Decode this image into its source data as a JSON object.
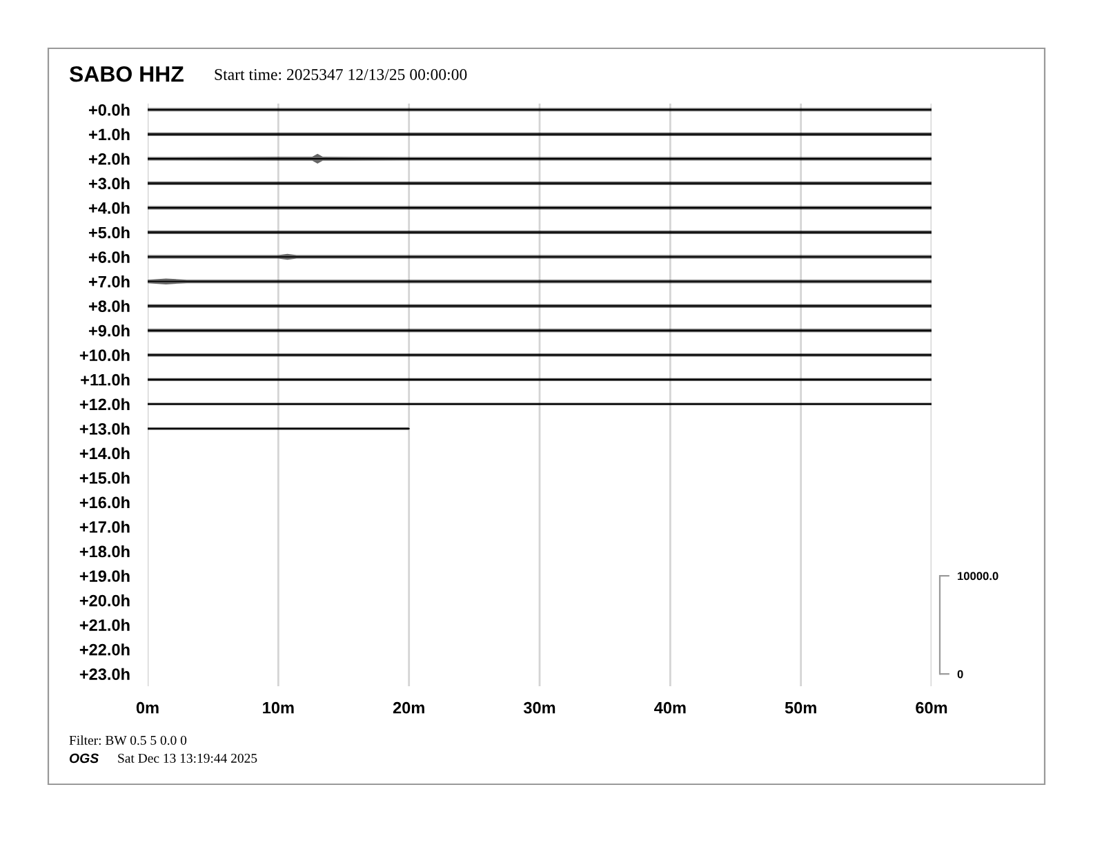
{
  "chart_data": {
    "type": "line",
    "title": "SABO HHZ",
    "subtitle": "Start time: 2025347 12/13/25 00:00:00",
    "annotations": [
      "Filter: BW 0.5 5 0.0 0",
      "OGS",
      "Sat Dec 13 13:19:44 2025"
    ],
    "xlim": [
      0,
      60
    ],
    "xticks": [
      {
        "value": 0,
        "label": "0m"
      },
      {
        "value": 10,
        "label": "10m"
      },
      {
        "value": 20,
        "label": "20m"
      },
      {
        "value": 30,
        "label": "30m"
      },
      {
        "value": 40,
        "label": "40m"
      },
      {
        "value": 50,
        "label": "50m"
      },
      {
        "value": 60,
        "label": "60m"
      }
    ],
    "ylim": [
      23.5,
      -0.25
    ],
    "yticks": [
      {
        "value": 0,
        "label": "+0.0h"
      },
      {
        "value": 1,
        "label": "+1.0h"
      },
      {
        "value": 2,
        "label": "+2.0h"
      },
      {
        "value": 3,
        "label": "+3.0h"
      },
      {
        "value": 4,
        "label": "+4.0h"
      },
      {
        "value": 5,
        "label": "+5.0h"
      },
      {
        "value": 6,
        "label": "+6.0h"
      },
      {
        "value": 7,
        "label": "+7.0h"
      },
      {
        "value": 8,
        "label": "+8.0h"
      },
      {
        "value": 9,
        "label": "+9.0h"
      },
      {
        "value": 10,
        "label": "+10.0h"
      },
      {
        "value": 11,
        "label": "+11.0h"
      },
      {
        "value": 12,
        "label": "+12.0h"
      },
      {
        "value": 13,
        "label": "+13.0h"
      },
      {
        "value": 14,
        "label": "+14.0h"
      },
      {
        "value": 15,
        "label": "+15.0h"
      },
      {
        "value": 16,
        "label": "+16.0h"
      },
      {
        "value": 17,
        "label": "+17.0h"
      },
      {
        "value": 18,
        "label": "+18.0h"
      },
      {
        "value": 19,
        "label": "+19.0h"
      },
      {
        "value": 20,
        "label": "+20.0h"
      },
      {
        "value": 21,
        "label": "+21.0h"
      },
      {
        "value": 22,
        "label": "+22.0h"
      },
      {
        "value": 23,
        "label": "+23.0h"
      }
    ],
    "y2lim": [
      -1250,
      58125
    ],
    "y2ticks": [
      {
        "value": 0,
        "label": "0"
      },
      {
        "value": 10000,
        "label": "10000.0"
      }
    ],
    "grid": "x",
    "series": [
      {
        "color": "#000000",
        "x": [
          0,
          10,
          20,
          30,
          40,
          50,
          60
        ],
        "values": [
          0,
          0,
          0,
          0,
          0,
          0,
          0
        ],
        "lower": [
          -0.07,
          -0.07,
          -0.07,
          -0.07,
          -0.07,
          -0.07,
          -0.07
        ],
        "upper": [
          0.07,
          0.07,
          0.07,
          0.07,
          0.07,
          0.07,
          0.07
        ]
      },
      {
        "color": "#000000",
        "x": [
          0,
          10,
          20,
          30,
          40,
          50,
          60
        ],
        "values": [
          1,
          1,
          1,
          1,
          1,
          1,
          1
        ],
        "lower": [
          0.93,
          0.93,
          0.93,
          0.93,
          0.93,
          0.93,
          0.93
        ],
        "upper": [
          1.07,
          1.07,
          1.07,
          1.07,
          1.07,
          1.07,
          1.07
        ]
      },
      {
        "color": "#000000",
        "x": [
          0,
          10,
          12.6,
          13,
          13.4,
          20,
          30,
          40,
          50,
          60
        ],
        "values": [
          2,
          2,
          2,
          2,
          2,
          2,
          2,
          2,
          2,
          2
        ],
        "lower": [
          1.93,
          1.92,
          1.92,
          1.8,
          1.92,
          1.93,
          1.93,
          1.93,
          1.93,
          1.93
        ],
        "upper": [
          2.07,
          2.08,
          2.08,
          2.2,
          2.08,
          2.07,
          2.07,
          2.07,
          2.07,
          2.07
        ]
      },
      {
        "color": "#000000",
        "x": [
          0,
          10,
          20,
          30,
          40,
          50,
          60
        ],
        "values": [
          3,
          3,
          3,
          3,
          3,
          3,
          3
        ],
        "lower": [
          2.93,
          2.93,
          2.93,
          2.93,
          2.93,
          2.93,
          2.93
        ],
        "upper": [
          3.07,
          3.07,
          3.07,
          3.07,
          3.07,
          3.07,
          3.07
        ]
      },
      {
        "color": "#000000",
        "x": [
          0,
          10,
          20,
          30,
          40,
          50,
          60
        ],
        "values": [
          4,
          4,
          4,
          4,
          4,
          4,
          4
        ],
        "lower": [
          3.93,
          3.93,
          3.93,
          3.93,
          3.93,
          3.93,
          3.93
        ],
        "upper": [
          4.07,
          4.07,
          4.07,
          4.07,
          4.07,
          4.07,
          4.07
        ]
      },
      {
        "color": "#000000",
        "x": [
          0,
          10,
          20,
          30,
          40,
          50,
          60
        ],
        "values": [
          5,
          5,
          5,
          5,
          5,
          5,
          5
        ],
        "lower": [
          4.93,
          4.93,
          4.93,
          4.93,
          4.93,
          4.93,
          4.93
        ],
        "upper": [
          5.07,
          5.07,
          5.07,
          5.07,
          5.07,
          5.07,
          5.07
        ]
      },
      {
        "color": "#000000",
        "x": [
          0,
          10,
          10.7,
          11.4,
          20,
          30,
          40,
          50,
          60
        ],
        "values": [
          6,
          6,
          6,
          6,
          6,
          6,
          6,
          6,
          6
        ],
        "lower": [
          5.93,
          5.93,
          5.88,
          5.93,
          5.93,
          5.93,
          5.93,
          5.93,
          5.93
        ],
        "upper": [
          6.07,
          6.07,
          6.12,
          6.07,
          6.07,
          6.07,
          6.07,
          6.07,
          6.07
        ]
      },
      {
        "color": "#000000",
        "x": [
          0,
          1.4,
          3,
          10,
          20,
          30,
          40,
          50,
          60
        ],
        "values": [
          7,
          7,
          7,
          7,
          7,
          7,
          7,
          7,
          7
        ],
        "lower": [
          6.93,
          6.88,
          6.93,
          6.93,
          6.93,
          6.93,
          6.93,
          6.93,
          6.93
        ],
        "upper": [
          7.07,
          7.12,
          7.07,
          7.07,
          7.07,
          7.07,
          7.07,
          7.07,
          7.07
        ]
      },
      {
        "color": "#000000",
        "x": [
          0,
          10,
          20,
          30,
          40,
          50,
          60
        ],
        "values": [
          8,
          8,
          8,
          8,
          8,
          8,
          8
        ],
        "lower": [
          7.93,
          7.93,
          7.93,
          7.93,
          7.93,
          7.93,
          7.93
        ],
        "upper": [
          8.07,
          8.07,
          8.07,
          8.07,
          8.07,
          8.07,
          8.07
        ]
      },
      {
        "color": "#000000",
        "x": [
          0,
          10,
          20,
          30,
          40,
          50,
          60
        ],
        "values": [
          9,
          9,
          9,
          9,
          9,
          9,
          9
        ],
        "lower": [
          8.93,
          8.93,
          8.93,
          8.93,
          8.93,
          8.93,
          8.93
        ],
        "upper": [
          9.07,
          9.07,
          9.07,
          9.07,
          9.07,
          9.07,
          9.07
        ]
      },
      {
        "color": "#000000",
        "x": [
          0,
          10,
          20,
          30,
          40,
          50,
          60
        ],
        "values": [
          10,
          10,
          10,
          10,
          10,
          10,
          10
        ],
        "lower": [
          9.94,
          9.94,
          9.94,
          9.94,
          9.94,
          9.94,
          9.94
        ],
        "upper": [
          10.06,
          10.06,
          10.06,
          10.06,
          10.06,
          10.06,
          10.06
        ]
      },
      {
        "color": "#000000",
        "x": [
          0,
          10,
          20,
          30,
          40,
          50,
          60
        ],
        "values": [
          11,
          11,
          11,
          11,
          11,
          11,
          11
        ],
        "lower": [
          10.94,
          10.94,
          10.94,
          10.94,
          10.94,
          10.94,
          10.94
        ],
        "upper": [
          11.06,
          11.06,
          11.06,
          11.06,
          11.06,
          11.06,
          11.06
        ]
      },
      {
        "color": "#000000",
        "x": [
          0,
          10,
          20,
          30,
          40,
          50,
          60
        ],
        "values": [
          12,
          12,
          12,
          12,
          12,
          12,
          12
        ],
        "lower": [
          11.95,
          11.95,
          11.95,
          11.95,
          11.95,
          11.95,
          11.95
        ],
        "upper": [
          12.05,
          12.05,
          12.05,
          12.05,
          12.05,
          12.05,
          12.05
        ]
      },
      {
        "color": "#000000",
        "x": [
          0,
          10,
          20
        ],
        "values": [
          13,
          13,
          13
        ],
        "lower": [
          12.95,
          12.95,
          12.95
        ],
        "upper": [
          13.05,
          13.05,
          13.05
        ]
      }
    ]
  }
}
